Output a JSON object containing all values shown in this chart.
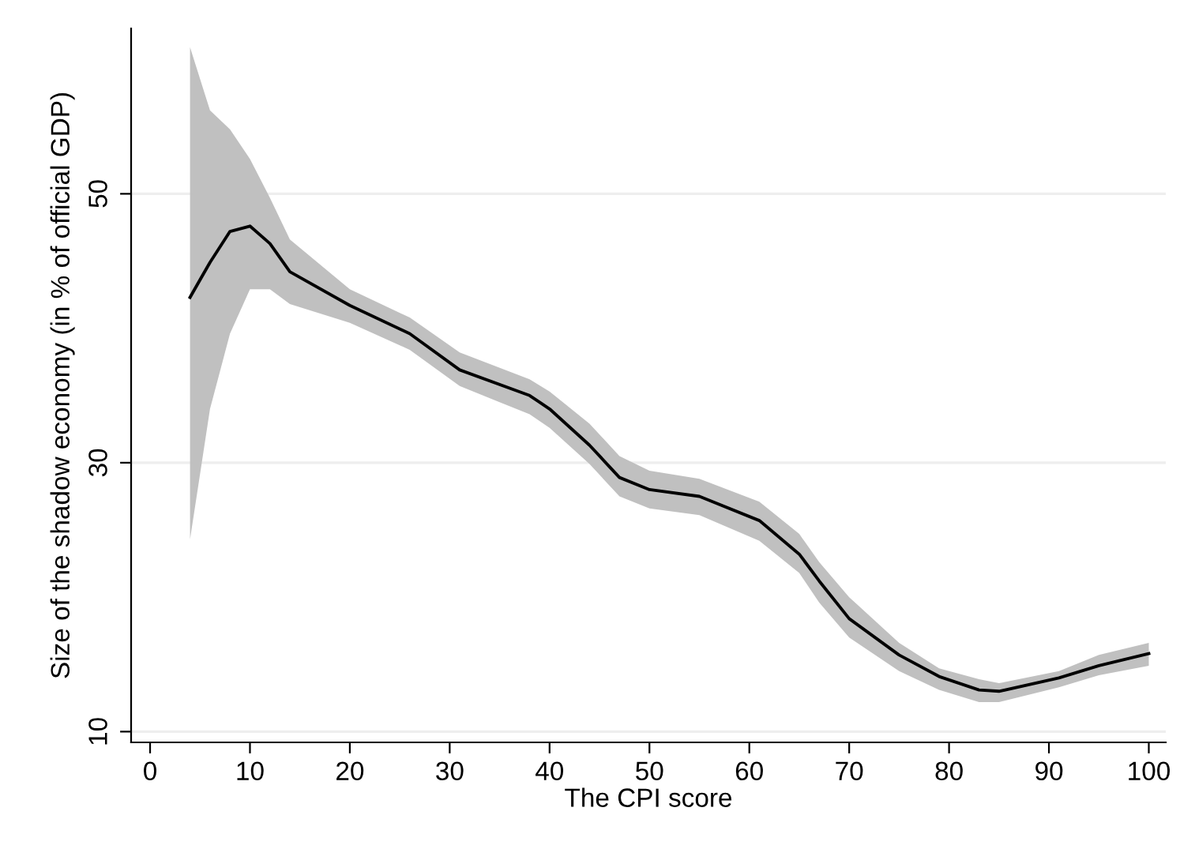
{
  "chart_data": {
    "type": "line",
    "xlabel": "The CPI score",
    "ylabel": "Size of the shadow economy (in % of official GDP)",
    "x": [
      4,
      6,
      8,
      10,
      12,
      14,
      20,
      26,
      31,
      38,
      40,
      44,
      47,
      50,
      55,
      61,
      65,
      67,
      70,
      75,
      79,
      83,
      85,
      91,
      95,
      100
    ],
    "series": [
      {
        "color": "#000000",
        "values": [
          42.3,
          44.9,
          47.2,
          47.6,
          46.3,
          44.2,
          41.7,
          39.6,
          36.9,
          35.0,
          34.0,
          31.3,
          28.9,
          28.0,
          27.5,
          25.7,
          23.2,
          21.2,
          18.4,
          15.7,
          14.1,
          13.1,
          13.0,
          14.0,
          14.9,
          15.8
        ],
        "upper": [
          60.9,
          56.2,
          54.8,
          52.6,
          49.7,
          46.6,
          42.9,
          40.8,
          38.2,
          36.2,
          35.3,
          32.9,
          30.5,
          29.4,
          28.8,
          27.1,
          24.7,
          22.6,
          20.0,
          16.6,
          14.7,
          13.9,
          13.6,
          14.5,
          15.7,
          16.6
        ],
        "lower": [
          24.3,
          34.0,
          39.6,
          42.9,
          42.9,
          41.8,
          40.4,
          38.4,
          35.7,
          33.6,
          32.6,
          29.9,
          27.5,
          26.6,
          26.1,
          24.2,
          21.8,
          19.6,
          17.0,
          14.5,
          13.1,
          12.2,
          12.2,
          13.3,
          14.2,
          14.9
        ]
      }
    ],
    "xlim": [
      -1.9,
      101.7
    ],
    "ylim": [
      9.2,
      62.3
    ],
    "xticks": [
      0,
      10,
      20,
      30,
      40,
      50,
      60,
      70,
      80,
      90,
      100
    ],
    "yticks": [
      10,
      30,
      50
    ],
    "grid": "y",
    "line_style": "solid",
    "marker": "none"
  }
}
